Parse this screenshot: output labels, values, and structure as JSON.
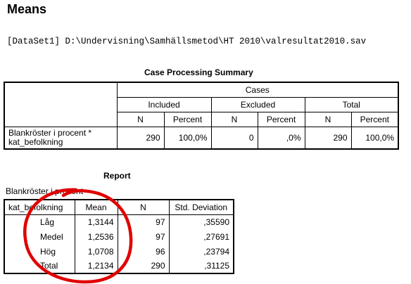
{
  "heading": "Means",
  "dataset_line": "[DataSet1] D:\\Undervisning\\Samhällsmetod\\HT 2010\\valresultat2010.sav",
  "case_summary": {
    "title": "Case Processing Summary",
    "cases_label": "Cases",
    "groups": [
      "Included",
      "Excluded",
      "Total"
    ],
    "sub_headers": [
      "N",
      "Percent",
      "N",
      "Percent",
      "N",
      "Percent"
    ],
    "row_label": "Blankröster i procent * kat_befolkning",
    "values": [
      "290",
      "100,0%",
      "0",
      ",0%",
      "290",
      "100,0%"
    ]
  },
  "report": {
    "title": "Report",
    "subtitle": "Blankröster i procent",
    "headers": [
      "kat_befolkning",
      "Mean",
      "N",
      "Std. Deviation"
    ],
    "rows": [
      {
        "label": "Låg",
        "mean": "1,3144",
        "n": "97",
        "sd": ",35590"
      },
      {
        "label": "Medel",
        "mean": "1,2536",
        "n": "97",
        "sd": ",27691"
      },
      {
        "label": "Hög",
        "mean": "1,0708",
        "n": "96",
        "sd": ",23794"
      },
      {
        "label": "Total",
        "mean": "1,2134",
        "n": "290",
        "sd": ",31125"
      }
    ]
  },
  "annotation": {
    "color": "#e00000"
  }
}
